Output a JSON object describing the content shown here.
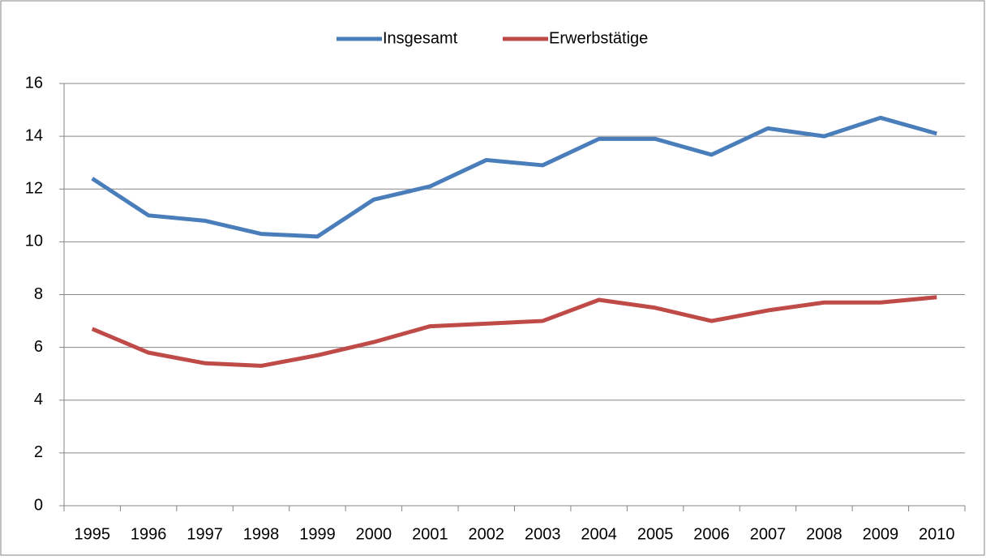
{
  "chart_data": {
    "type": "line",
    "categories": [
      "1995",
      "1996",
      "1997",
      "1998",
      "1999",
      "2000",
      "2001",
      "2002",
      "2003",
      "2004",
      "2005",
      "2006",
      "2007",
      "2008",
      "2009",
      "2010"
    ],
    "series": [
      {
        "name": "Insgesamt",
        "color": "#4a7ebb",
        "values": [
          12.4,
          11.0,
          10.8,
          10.3,
          10.2,
          11.6,
          12.1,
          13.1,
          12.9,
          13.9,
          13.9,
          13.3,
          14.3,
          14.0,
          14.7,
          14.1
        ]
      },
      {
        "name": "Erwerbstätige",
        "color": "#be4b48",
        "values": [
          6.7,
          5.8,
          5.4,
          5.3,
          5.7,
          6.2,
          6.8,
          6.9,
          7.0,
          7.8,
          7.5,
          7.0,
          7.4,
          7.7,
          7.7,
          7.9
        ]
      }
    ],
    "ylim": [
      0,
      16
    ],
    "yticks": [
      0,
      2,
      4,
      6,
      8,
      10,
      12,
      14,
      16
    ],
    "grid": true,
    "legend": "top"
  }
}
